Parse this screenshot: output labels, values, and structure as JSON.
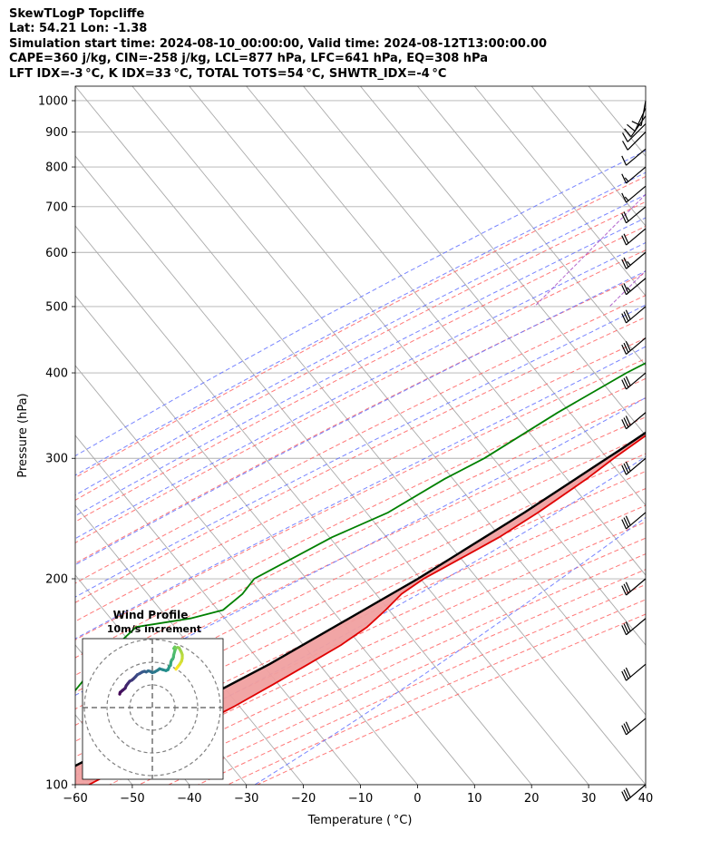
{
  "header": {
    "line1": "SkewTLogP Topcliffe",
    "line2": "Lat: 54.21   Lon: -1.38",
    "line3": "Simulation start time: 2024-08-10_00:00:00, Valid time: 2024-08-12T13:00:00.00",
    "line4": "CAPE=360 j/kg, CIN=-258 j/kg, LCL=877 hPa, LFC=641 hPa, EQ=308 hPa",
    "line5": "LFT IDX=-3 °C, K IDX=33 °C, TOTAL TOTS=54 °C, SHWTR_IDX=-4 °C"
  },
  "chart_data": {
    "type": "line",
    "xlabel": "Temperature ( °C)",
    "ylabel": "Pressure (hPa)",
    "xlim": [
      -60,
      40
    ],
    "ylim": [
      1050,
      100
    ],
    "y_scale": "log",
    "x_ticks": [
      "−60",
      "−50",
      "−40",
      "−30",
      "−20",
      "−10",
      "0",
      "10",
      "20",
      "30",
      "40"
    ],
    "y_ticks": [
      "1000",
      "900",
      "800",
      "700",
      "600",
      "500",
      "400",
      "300",
      "200",
      "100"
    ],
    "colors": {
      "temperature": "#e00000",
      "dewpoint": "#008000",
      "parcel": "#000000",
      "cape": "#a3c4df",
      "cin": "#f0a0a0",
      "dry_adiabats": "#ff6060",
      "moist_adiabats": "#6070ff",
      "mixing_ratio": "#a040c0",
      "isotherms": "#aaaaaa"
    },
    "series": [
      {
        "key": "temperature",
        "pressure": [
          1000,
          975,
          950,
          925,
          900,
          850,
          800,
          750,
          700,
          650,
          600,
          550,
          500,
          450,
          400,
          350,
          300,
          280,
          250,
          230,
          220,
          200,
          190,
          180,
          170,
          160,
          150,
          140,
          130,
          120,
          110,
          100
        ],
        "values": [
          26.5,
          23.3,
          21.9,
          22.4,
          22.9,
          22.5,
          21.7,
          20.2,
          17.5,
          13.3,
          9.7,
          6.7,
          3.8,
          0.6,
          -3.2,
          -7.6,
          -12.3,
          -14.1,
          -17.8,
          -21.1,
          -23.4,
          -28.4,
          -30.1,
          -30.6,
          -31.4,
          -33.4,
          -36.4,
          -39.7,
          -43.4,
          -48.1,
          -52.2,
          -57.6
        ]
      },
      {
        "key": "dewpoint",
        "pressure": [
          1000,
          975,
          950,
          925,
          900,
          850,
          800,
          750,
          700,
          650,
          600,
          550,
          500,
          475,
          450,
          400,
          350,
          300,
          280,
          250,
          230,
          200,
          190,
          180,
          175,
          170,
          150,
          130,
          115,
          100
        ],
        "values": [
          18.2,
          18.5,
          18.7,
          18.7,
          19.0,
          19.4,
          18.3,
          16.0,
          12.0,
          10.2,
          6.9,
          3.3,
          -5.8,
          -12.2,
          -15.3,
          -22.3,
          -28.7,
          -35.0,
          -39.0,
          -44.1,
          -50.4,
          -58.1,
          -58.0,
          -59.1,
          -63.6,
          -71.9,
          -73.5,
          -73.5,
          -73.5,
          -73.5
        ]
      },
      {
        "key": "parcel",
        "pressure": [
          1000,
          950,
          900,
          877,
          850,
          800,
          750,
          700,
          650,
          641,
          600,
          550,
          500,
          450,
          400,
          350,
          308,
          300,
          250,
          200,
          150,
          100
        ],
        "values": [
          26.8,
          22.4,
          17.9,
          15.8,
          15.1,
          13.8,
          12.4,
          10.9,
          9.2,
          8.9,
          7.4,
          5.3,
          2.9,
          0.0,
          -3.6,
          -8.0,
          -12.5,
          -13.5,
          -20.2,
          -29.4,
          -43.2,
          -66.3
        ]
      }
    ],
    "winds": {
      "pressure": [
        1000,
        975,
        950,
        925,
        900,
        850,
        800,
        750,
        700,
        650,
        600,
        550,
        500,
        450,
        400,
        350,
        300,
        250,
        200,
        175,
        150,
        125,
        100
      ],
      "speed_kt": [
        10,
        10,
        12,
        12,
        10,
        12,
        15,
        18,
        20,
        22,
        25,
        25,
        30,
        30,
        30,
        30,
        30,
        30,
        30,
        30,
        30,
        30,
        30
      ],
      "direction_deg": [
        190,
        205,
        215,
        225,
        225,
        230,
        230,
        230,
        230,
        230,
        230,
        230,
        230,
        230,
        230,
        230,
        230,
        230,
        230,
        230,
        230,
        230,
        230
      ]
    },
    "hodograph": {
      "title": "Wind Profile",
      "subtitle": "10m/s increment",
      "rings_ms": [
        10,
        20,
        30
      ],
      "u_ms": [
        -14.4,
        -14.2,
        -13.6,
        -13.0,
        -12.0,
        -11.5,
        -10.8,
        -10.0,
        -9.0,
        -8.2,
        -7.5,
        -6.6,
        -5.6,
        -4.4,
        -3.5,
        -2.7,
        -1.8,
        -1.0,
        0.0,
        1.0,
        2.4,
        3.2,
        4.6,
        6.0,
        6.9,
        7.3,
        7.5,
        8.0,
        8.2,
        8.6,
        9.0,
        9.3,
        9.4,
        9.8,
        10.1,
        9.5,
        9.9,
        10.3,
        11.2,
        11.8,
        12.4,
        12.8,
        13.2,
        13.2,
        12.9,
        12.1,
        11.4,
        11.0,
        10.4
      ],
      "v_ms": [
        5.9,
        6.7,
        7.2,
        7.7,
        8.5,
        9.7,
        10.6,
        11.6,
        12.1,
        12.8,
        13.5,
        14.5,
        15.0,
        15.7,
        16.0,
        15.7,
        16.2,
        16.0,
        15.4,
        15.7,
        16.5,
        17.1,
        16.7,
        16.3,
        16.7,
        17.6,
        18.2,
        18.6,
        20.1,
        21.1,
        21.4,
        22.2,
        23.1,
        24.6,
        25.6,
        26.1,
        26.7,
        26.3,
        26.5,
        26.3,
        25.2,
        24.4,
        23.3,
        21.8,
        20.5,
        19.1,
        18.2,
        17.7,
        16.9
      ],
      "colormap": [
        "#440154",
        "#3b528b",
        "#21918c",
        "#5ec962",
        "#fde725"
      ]
    }
  }
}
